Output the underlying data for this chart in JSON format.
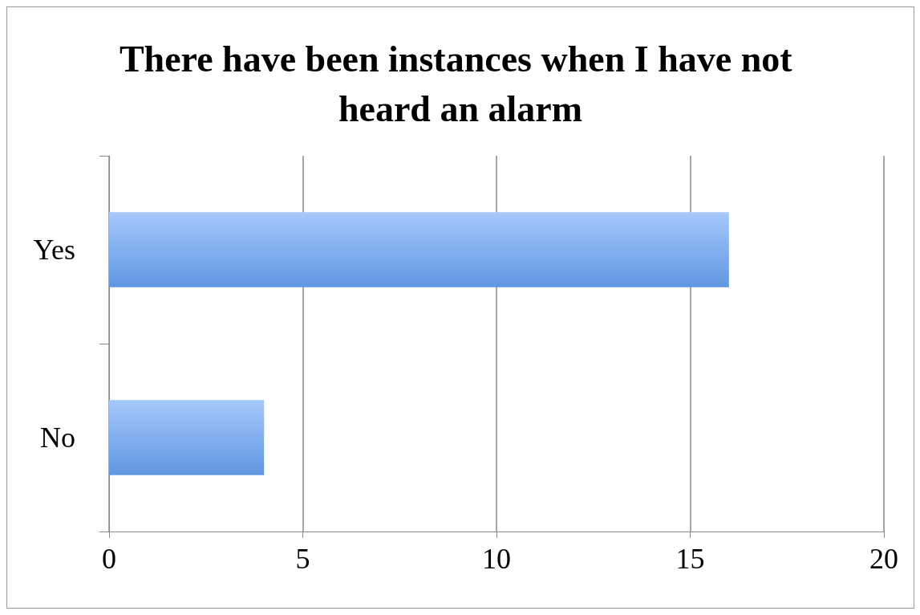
{
  "chart_data": {
    "type": "bar",
    "orientation": "horizontal",
    "title": "There have been instances when I have not heard an alarm",
    "categories": [
      "Yes",
      "No"
    ],
    "values": [
      16,
      4
    ],
    "color": "#5f97e2",
    "xlim": [
      0,
      20
    ],
    "xticks": [
      0,
      5,
      10,
      15,
      20
    ],
    "grid": "x"
  }
}
